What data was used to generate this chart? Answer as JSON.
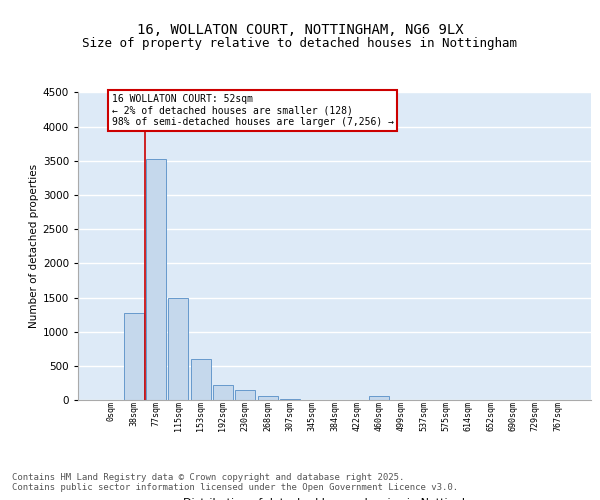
{
  "title_line1": "16, WOLLATON COURT, NOTTINGHAM, NG6 9LX",
  "title_line2": "Size of property relative to detached houses in Nottingham",
  "xlabel": "Distribution of detached houses by size in Nottingham",
  "ylabel": "Number of detached properties",
  "bar_color": "#c5d8ec",
  "bar_edge_color": "#6699cc",
  "bg_color": "#ddeaf7",
  "grid_color": "#ffffff",
  "categories": [
    "0sqm",
    "38sqm",
    "77sqm",
    "115sqm",
    "153sqm",
    "192sqm",
    "230sqm",
    "268sqm",
    "307sqm",
    "345sqm",
    "384sqm",
    "422sqm",
    "460sqm",
    "499sqm",
    "537sqm",
    "575sqm",
    "614sqm",
    "652sqm",
    "690sqm",
    "729sqm",
    "767sqm"
  ],
  "values": [
    5,
    1270,
    3530,
    1500,
    600,
    220,
    150,
    60,
    15,
    5,
    0,
    0,
    60,
    0,
    0,
    0,
    0,
    0,
    0,
    0,
    0
  ],
  "ylim": [
    0,
    4500
  ],
  "yticks": [
    0,
    500,
    1000,
    1500,
    2000,
    2500,
    3000,
    3500,
    4000,
    4500
  ],
  "property_line_x": 1.5,
  "annotation_text": "16 WOLLATON COURT: 52sqm\n← 2% of detached houses are smaller (128)\n98% of semi-detached houses are larger (7,256) →",
  "footer_line1": "Contains HM Land Registry data © Crown copyright and database right 2025.",
  "footer_line2": "Contains public sector information licensed under the Open Government Licence v3.0.",
  "title_fontsize": 10,
  "subtitle_fontsize": 9,
  "footer_fontsize": 6.5
}
